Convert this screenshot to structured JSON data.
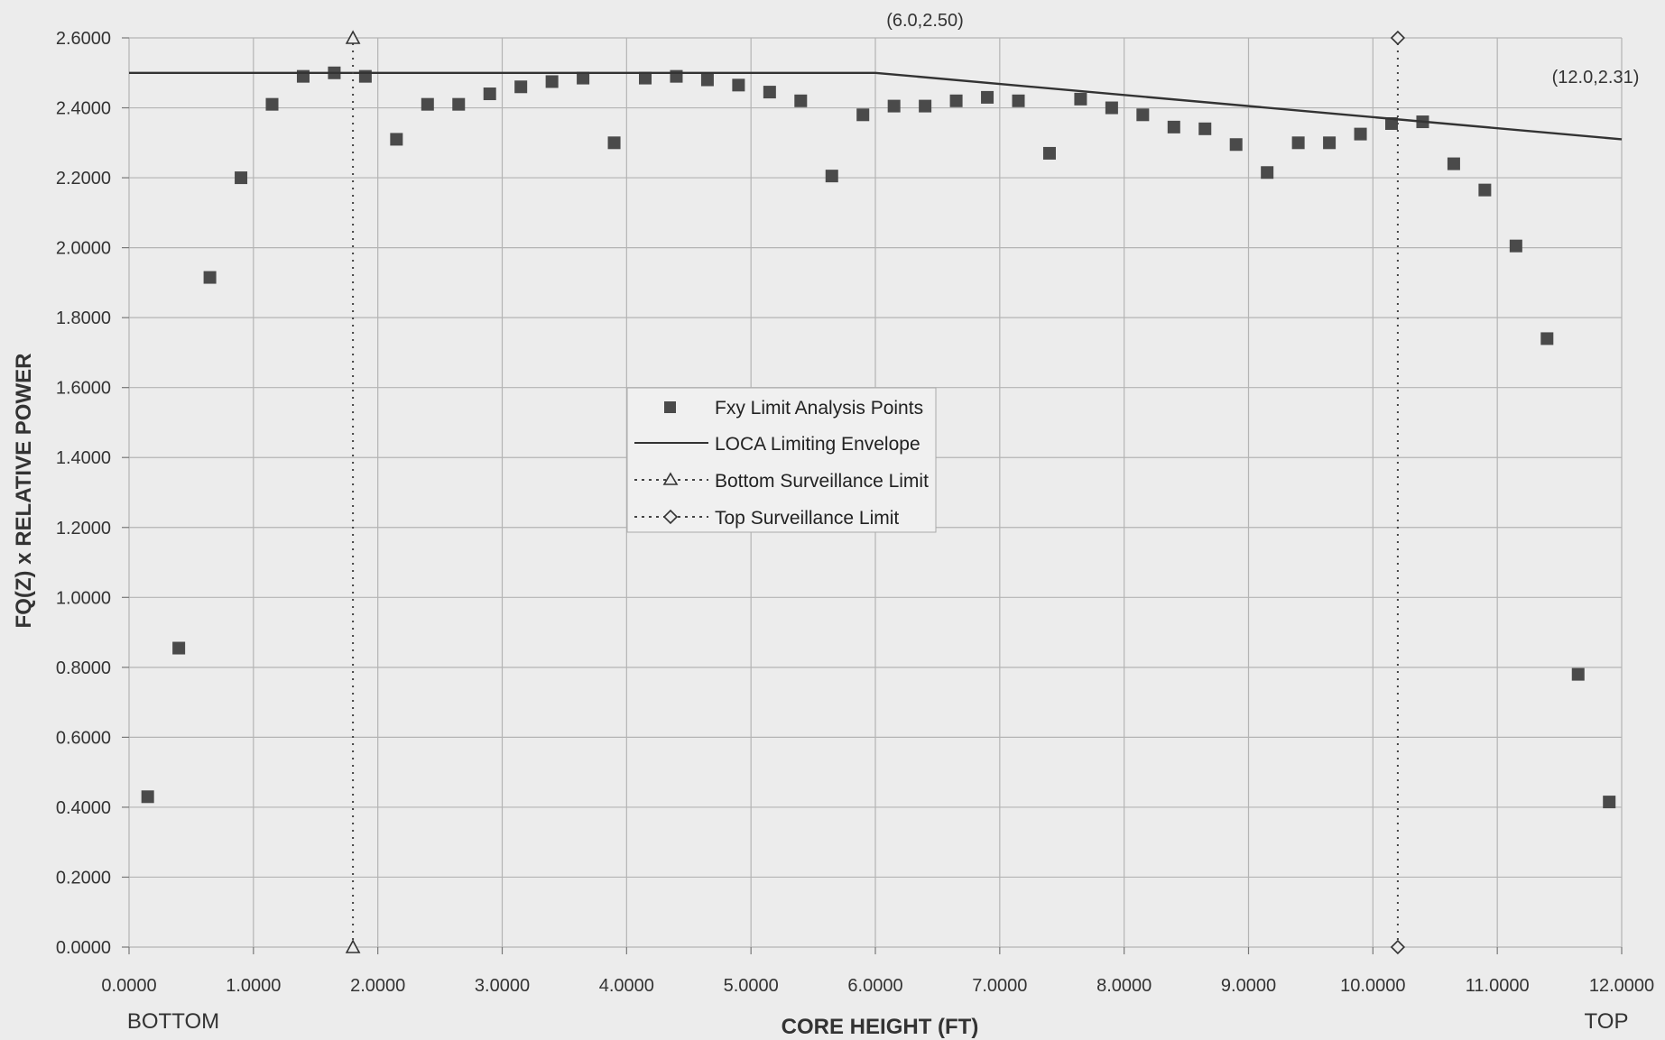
{
  "chart_data": {
    "type": "scatter",
    "xlabel": "CORE HEIGHT (FT)",
    "ylabel": "FQ(Z) x RELATIVE POWER",
    "x_end_labels": {
      "left": "BOTTOM",
      "right": "TOP"
    },
    "xlim": [
      0,
      12
    ],
    "ylim": [
      0,
      2.6
    ],
    "x_ticks": [
      0,
      1,
      2,
      3,
      4,
      5,
      6,
      7,
      8,
      9,
      10,
      11,
      12
    ],
    "x_tick_labels": [
      "0.0000",
      "1.0000",
      "2.0000",
      "3.0000",
      "4.0000",
      "5.0000",
      "6.0000",
      "7.0000",
      "8.0000",
      "9.0000",
      "10.0000",
      "11.0000",
      "12.0000"
    ],
    "y_ticks": [
      0,
      0.2,
      0.4,
      0.6,
      0.8,
      1.0,
      1.2,
      1.4,
      1.6,
      1.8,
      2.0,
      2.2,
      2.4,
      2.6
    ],
    "y_tick_labels": [
      "0.0000",
      "0.2000",
      "0.4000",
      "0.6000",
      "0.8000",
      "1.0000",
      "1.2000",
      "1.4000",
      "1.6000",
      "1.8000",
      "2.0000",
      "2.2000",
      "2.4000",
      "2.6000"
    ],
    "grid": true,
    "legend_position": "center",
    "series": [
      {
        "name": "Fxy Limit Analysis Points",
        "kind": "scatter",
        "marker": "square",
        "color": "#4a4a4a",
        "points": [
          [
            0.15,
            0.43
          ],
          [
            0.4,
            0.855
          ],
          [
            0.65,
            1.915
          ],
          [
            0.9,
            2.2
          ],
          [
            1.15,
            2.41
          ],
          [
            1.4,
            2.49
          ],
          [
            1.65,
            2.5
          ],
          [
            1.9,
            2.49
          ],
          [
            2.15,
            2.31
          ],
          [
            2.4,
            2.41
          ],
          [
            2.65,
            2.41
          ],
          [
            2.9,
            2.44
          ],
          [
            3.15,
            2.46
          ],
          [
            3.4,
            2.475
          ],
          [
            3.65,
            2.485
          ],
          [
            3.9,
            2.3
          ],
          [
            4.15,
            2.485
          ],
          [
            4.4,
            2.49
          ],
          [
            4.65,
            2.48
          ],
          [
            4.9,
            2.465
          ],
          [
            5.15,
            2.445
          ],
          [
            5.4,
            2.42
          ],
          [
            5.65,
            2.205
          ],
          [
            5.9,
            2.38
          ],
          [
            6.15,
            2.405
          ],
          [
            6.4,
            2.405
          ],
          [
            6.65,
            2.42
          ],
          [
            6.9,
            2.43
          ],
          [
            7.15,
            2.42
          ],
          [
            7.4,
            2.27
          ],
          [
            7.65,
            2.425
          ],
          [
            7.9,
            2.4
          ],
          [
            8.15,
            2.38
          ],
          [
            8.4,
            2.345
          ],
          [
            8.65,
            2.34
          ],
          [
            8.9,
            2.295
          ],
          [
            9.15,
            2.215
          ],
          [
            9.4,
            2.3
          ],
          [
            9.65,
            2.3
          ],
          [
            9.9,
            2.325
          ],
          [
            10.15,
            2.355
          ],
          [
            10.4,
            2.36
          ],
          [
            10.65,
            2.24
          ],
          [
            10.9,
            2.165
          ],
          [
            11.15,
            2.005
          ],
          [
            11.4,
            1.74
          ],
          [
            11.65,
            0.78
          ],
          [
            11.9,
            0.415
          ]
        ]
      },
      {
        "name": "LOCA Limiting Envelope",
        "kind": "line",
        "color": "#333333",
        "points": [
          [
            0,
            2.5
          ],
          [
            6.0,
            2.5
          ],
          [
            12.0,
            2.31
          ]
        ]
      },
      {
        "name": "Bottom Surveillance Limit",
        "kind": "dotted-line",
        "marker": "triangle",
        "color": "#444444",
        "points": [
          [
            1.8,
            0
          ],
          [
            1.8,
            2.6
          ]
        ]
      },
      {
        "name": "Top Surveillance Limit",
        "kind": "dotted-line",
        "marker": "diamond",
        "color": "#444444",
        "points": [
          [
            10.2,
            0
          ],
          [
            10.2,
            2.6
          ]
        ]
      }
    ],
    "annotations": [
      {
        "text": "(6.0,2.50)",
        "x": 6.0,
        "y": 2.5
      },
      {
        "text": "(12.0,2.31)",
        "x": 12.0,
        "y": 2.31
      }
    ]
  }
}
